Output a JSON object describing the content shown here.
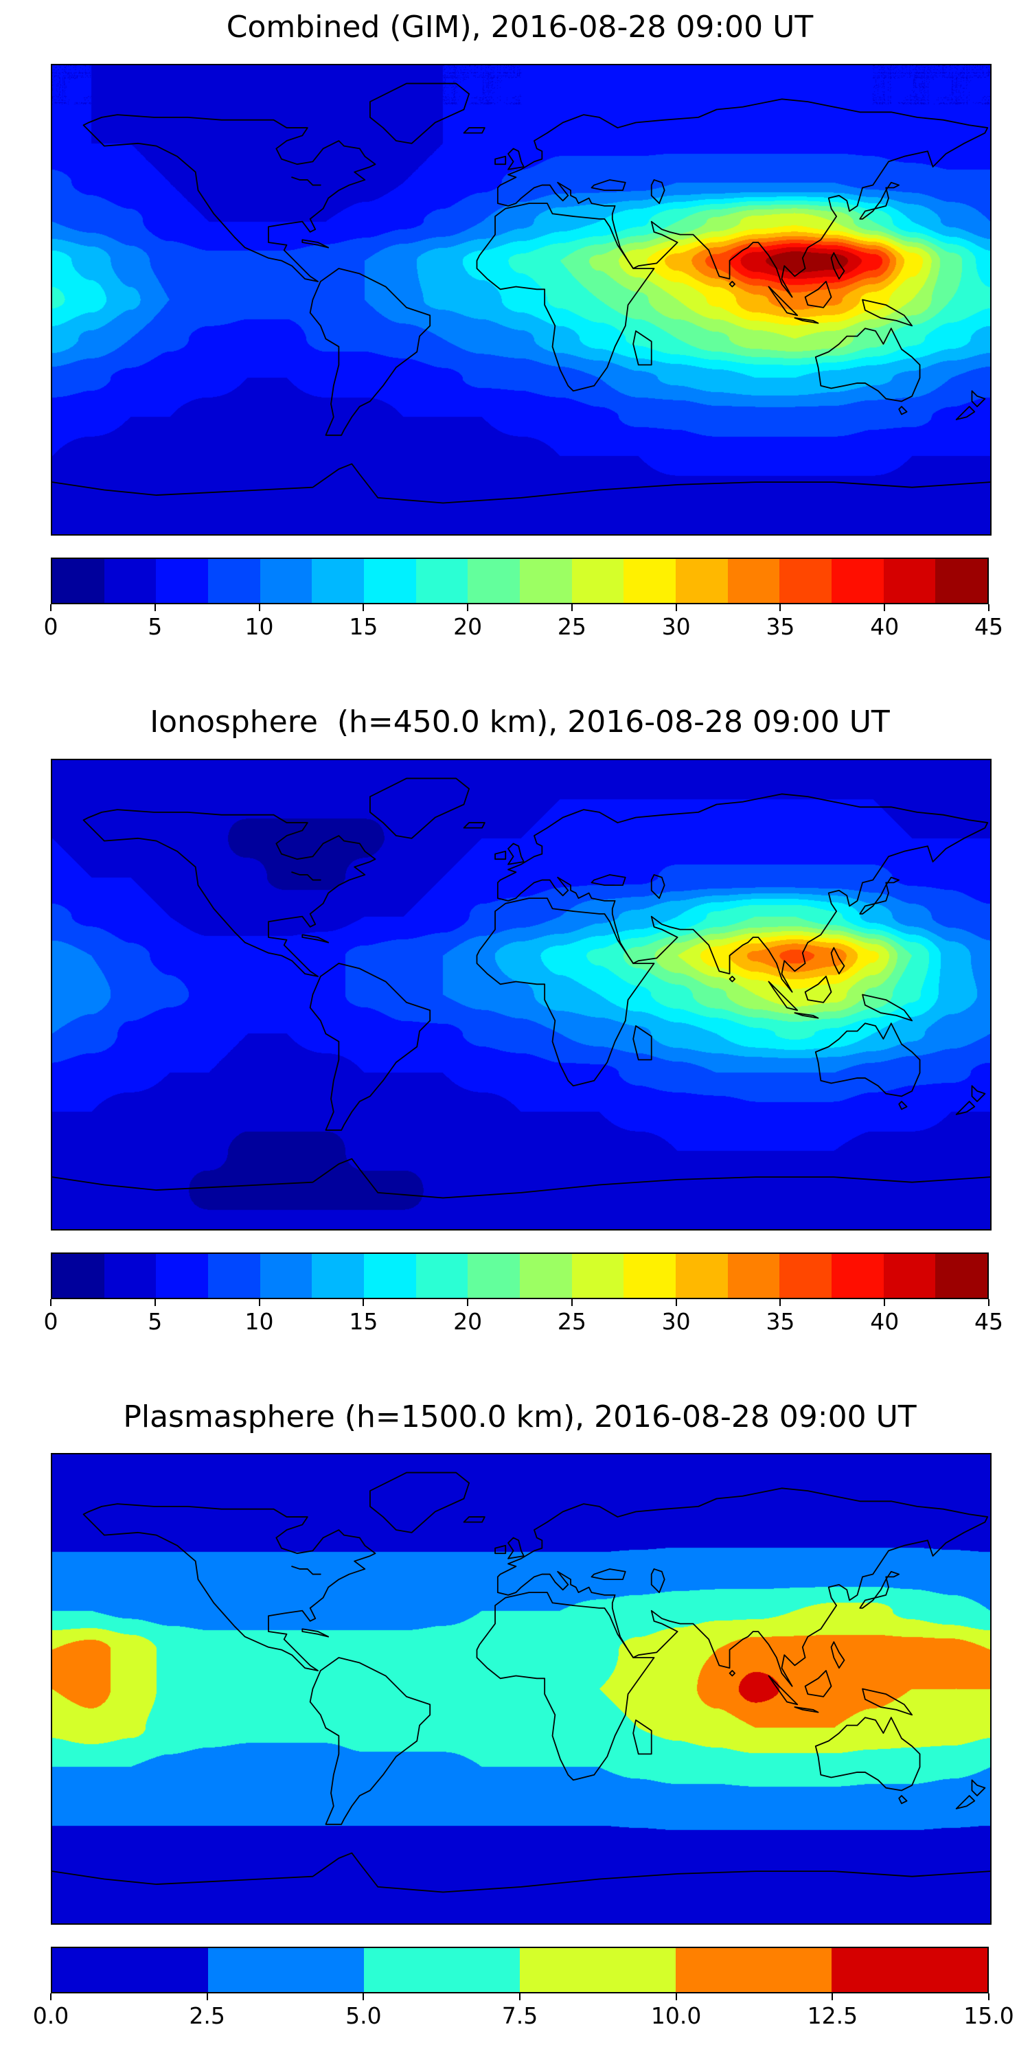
{
  "figure": {
    "background": "#ffffff",
    "coastline_color": "#000000",
    "colormap_name": "jet"
  },
  "chart_data": [
    {
      "type": "heatmap",
      "title": "Combined (GIM), 2016-08-28 09:00 UT",
      "projection": "equirectangular",
      "lon_range": [
        -180,
        180
      ],
      "lat_range": [
        -90,
        90
      ],
      "value_range": [
        0,
        45
      ],
      "contour_step": 2.5,
      "colormap": "jet",
      "colorbar_ticks": [
        0,
        5,
        10,
        15,
        20,
        25,
        30,
        35,
        40,
        45
      ],
      "tick_labels": [
        "0",
        "5",
        "10",
        "15",
        "20",
        "25",
        "30",
        "35",
        "40",
        "45"
      ],
      "grid_lons": [
        -180,
        -165,
        -150,
        -135,
        -120,
        -105,
        -90,
        -75,
        -60,
        -45,
        -30,
        -15,
        0,
        15,
        30,
        45,
        60,
        75,
        90,
        105,
        120,
        135,
        150,
        165,
        180
      ],
      "grid_lats": [
        90,
        75,
        60,
        45,
        30,
        15,
        0,
        -15,
        -30,
        -45,
        -60,
        -75,
        -90
      ],
      "values": [
        [
          5,
          5,
          5,
          5,
          5,
          5,
          5,
          5,
          5,
          5,
          5,
          5,
          5,
          5,
          5,
          5,
          5,
          5,
          5,
          5,
          5,
          5,
          5,
          5,
          5
        ],
        [
          5,
          5,
          4,
          4,
          4,
          4,
          4,
          4,
          4,
          4,
          5,
          5,
          5,
          6,
          6,
          6,
          6,
          6,
          6,
          6,
          6,
          5,
          5,
          5,
          5
        ],
        [
          6,
          5,
          5,
          4,
          4,
          3,
          3,
          3,
          3,
          4,
          5,
          6,
          6,
          7,
          7,
          7,
          7,
          7,
          7,
          7,
          7,
          7,
          6,
          6,
          6
        ],
        [
          8,
          7,
          6,
          5,
          4,
          4,
          3,
          3,
          4,
          5,
          6,
          7,
          8,
          9,
          9,
          9,
          10,
          10,
          10,
          10,
          10,
          9,
          9,
          8,
          8
        ],
        [
          10,
          9,
          8,
          6,
          5,
          5,
          5,
          5,
          6,
          7,
          8,
          10,
          12,
          14,
          15,
          17,
          20,
          23,
          26,
          27,
          25,
          20,
          15,
          12,
          10
        ],
        [
          16,
          14,
          11,
          9,
          8,
          8,
          8,
          9,
          10,
          12,
          14,
          16,
          18,
          20,
          23,
          27,
          31,
          36,
          42,
          45,
          44,
          39,
          29,
          21,
          16
        ],
        [
          18,
          16,
          13,
          10,
          9,
          8,
          8,
          9,
          10,
          12,
          13,
          14,
          16,
          18,
          20,
          22,
          25,
          28,
          32,
          34,
          33,
          29,
          25,
          20,
          18
        ],
        [
          14,
          12,
          10,
          8,
          7,
          7,
          7,
          8,
          8,
          9,
          10,
          11,
          12,
          14,
          16,
          18,
          20,
          22,
          24,
          25,
          24,
          21,
          18,
          16,
          14
        ],
        [
          9,
          8,
          7,
          6,
          6,
          5,
          5,
          6,
          6,
          6,
          7,
          8,
          8,
          9,
          10,
          12,
          13,
          14,
          15,
          15,
          14,
          13,
          12,
          10,
          9
        ],
        [
          6,
          6,
          5,
          5,
          4,
          4,
          4,
          4,
          4,
          5,
          5,
          5,
          6,
          6,
          7,
          8,
          8,
          9,
          9,
          9,
          9,
          8,
          8,
          7,
          6
        ],
        [
          5,
          4,
          4,
          4,
          3,
          3,
          3,
          3,
          3,
          3,
          4,
          4,
          4,
          5,
          5,
          5,
          6,
          6,
          6,
          6,
          6,
          6,
          5,
          5,
          5
        ],
        [
          4,
          3,
          3,
          3,
          3,
          3,
          3,
          3,
          3,
          3,
          3,
          3,
          3,
          4,
          4,
          4,
          4,
          4,
          4,
          4,
          4,
          4,
          4,
          4,
          4
        ],
        [
          3,
          3,
          3,
          3,
          3,
          3,
          3,
          3,
          3,
          3,
          3,
          3,
          3,
          3,
          3,
          3,
          3,
          3,
          3,
          3,
          3,
          3,
          3,
          3,
          3
        ]
      ]
    },
    {
      "type": "heatmap",
      "title": "Ionosphere  (h=450.0 km), 2016-08-28 09:00 UT",
      "projection": "equirectangular",
      "lon_range": [
        -180,
        180
      ],
      "lat_range": [
        -90,
        90
      ],
      "value_range": [
        0,
        45
      ],
      "contour_step": 2.5,
      "colormap": "jet",
      "colorbar_ticks": [
        0,
        5,
        10,
        15,
        20,
        25,
        30,
        35,
        40,
        45
      ],
      "tick_labels": [
        "0",
        "5",
        "10",
        "15",
        "20",
        "25",
        "30",
        "35",
        "40",
        "45"
      ],
      "grid_lons": [
        -180,
        -165,
        -150,
        -135,
        -120,
        -105,
        -90,
        -75,
        -60,
        -45,
        -30,
        -15,
        0,
        15,
        30,
        45,
        60,
        75,
        90,
        105,
        120,
        135,
        150,
        165,
        180
      ],
      "grid_lats": [
        90,
        75,
        60,
        45,
        30,
        15,
        0,
        -15,
        -30,
        -45,
        -60,
        -75,
        -90
      ],
      "values": [
        [
          4,
          4,
          4,
          4,
          4,
          4,
          4,
          4,
          4,
          4,
          4,
          4,
          4,
          4,
          4,
          4,
          4,
          4,
          4,
          4,
          4,
          4,
          4,
          4,
          4
        ],
        [
          4,
          4,
          4,
          3,
          3,
          3,
          3,
          3,
          3,
          3,
          4,
          4,
          4,
          5,
          5,
          5,
          5,
          5,
          5,
          5,
          5,
          5,
          4,
          4,
          4
        ],
        [
          5,
          4,
          4,
          3,
          3,
          2,
          2,
          2,
          2,
          3,
          4,
          5,
          5,
          6,
          6,
          6,
          6,
          6,
          6,
          6,
          6,
          6,
          5,
          5,
          5
        ],
        [
          6,
          5,
          5,
          4,
          3,
          3,
          2,
          2,
          3,
          4,
          5,
          6,
          6,
          7,
          7,
          7,
          8,
          8,
          8,
          8,
          8,
          8,
          7,
          7,
          6
        ],
        [
          8,
          7,
          6,
          5,
          4,
          4,
          4,
          4,
          5,
          5,
          6,
          8,
          9,
          10,
          12,
          13,
          15,
          18,
          20,
          20,
          18,
          14,
          11,
          9,
          8
        ],
        [
          11,
          10,
          8,
          7,
          6,
          6,
          6,
          7,
          8,
          9,
          10,
          12,
          14,
          16,
          18,
          21,
          25,
          29,
          33,
          36,
          34,
          28,
          20,
          14,
          11
        ],
        [
          12,
          11,
          9,
          8,
          7,
          6,
          6,
          7,
          8,
          9,
          10,
          11,
          12,
          14,
          15,
          17,
          19,
          22,
          25,
          27,
          26,
          22,
          18,
          14,
          12
        ],
        [
          10,
          9,
          7,
          6,
          6,
          5,
          5,
          6,
          6,
          7,
          7,
          8,
          9,
          10,
          11,
          12,
          14,
          15,
          17,
          18,
          17,
          15,
          13,
          11,
          10
        ],
        [
          7,
          6,
          6,
          5,
          5,
          4,
          4,
          4,
          5,
          5,
          5,
          6,
          6,
          7,
          7,
          8,
          9,
          10,
          10,
          10,
          10,
          9,
          8,
          8,
          7
        ],
        [
          5,
          5,
          4,
          4,
          4,
          3,
          3,
          3,
          3,
          4,
          4,
          4,
          5,
          5,
          5,
          6,
          6,
          6,
          7,
          7,
          7,
          6,
          6,
          5,
          5
        ],
        [
          4,
          4,
          3,
          3,
          3,
          2,
          2,
          2,
          3,
          3,
          3,
          3,
          4,
          4,
          4,
          4,
          5,
          5,
          5,
          5,
          5,
          4,
          4,
          4,
          4
        ],
        [
          3,
          3,
          3,
          3,
          2,
          2,
          2,
          2,
          2,
          2,
          3,
          3,
          3,
          3,
          3,
          3,
          3,
          3,
          3,
          3,
          3,
          3,
          3,
          3,
          3
        ],
        [
          3,
          3,
          3,
          3,
          3,
          3,
          3,
          3,
          3,
          3,
          3,
          3,
          3,
          3,
          3,
          3,
          3,
          3,
          3,
          3,
          3,
          3,
          3,
          3,
          3
        ]
      ]
    },
    {
      "type": "heatmap",
      "title": "Plasmasphere (h=1500.0 km), 2016-08-28 09:00 UT",
      "projection": "equirectangular",
      "lon_range": [
        -180,
        180
      ],
      "lat_range": [
        -90,
        90
      ],
      "value_range": [
        0,
        15
      ],
      "contour_step": 2.5,
      "colormap": "jet",
      "colorbar_ticks": [
        0,
        2.5,
        5,
        7.5,
        10,
        12.5,
        15
      ],
      "tick_labels": [
        "0.0",
        "2.5",
        "5.0",
        "7.5",
        "10.0",
        "12.5",
        "15.0"
      ],
      "grid_lons": [
        -180,
        -165,
        -150,
        -135,
        -120,
        -105,
        -90,
        -75,
        -60,
        -45,
        -30,
        -15,
        0,
        15,
        30,
        45,
        60,
        75,
        90,
        105,
        120,
        135,
        150,
        165,
        180
      ],
      "grid_lats": [
        90,
        75,
        60,
        45,
        30,
        15,
        0,
        -15,
        -30,
        -45,
        -60,
        -75,
        -90
      ],
      "values": [
        [
          1.5,
          1.5,
          1.5,
          1.5,
          1.5,
          1.5,
          1.5,
          1.5,
          1.5,
          1.5,
          1.5,
          1.5,
          1.5,
          1.5,
          1.5,
          1.5,
          1.5,
          1.5,
          1.5,
          1.5,
          1.5,
          1.5,
          1.5,
          1.5,
          1.5
        ],
        [
          1.5,
          1.5,
          1.5,
          1.5,
          1.5,
          1.5,
          1.5,
          1.5,
          1.5,
          1.5,
          1.5,
          1.5,
          1.5,
          1.5,
          1.5,
          1.5,
          1.5,
          1.5,
          1.5,
          1.5,
          1.5,
          1.5,
          1.5,
          1.5,
          1.5
        ],
        [
          2,
          2,
          2,
          2,
          2,
          2,
          2,
          2,
          2,
          2,
          2,
          2,
          2,
          2,
          2,
          2,
          2,
          2,
          2,
          2,
          2,
          2,
          2,
          2,
          2
        ],
        [
          3,
          3,
          3,
          3,
          3,
          3,
          3,
          3,
          3,
          3,
          3,
          3,
          3,
          3,
          3,
          3.2,
          3.5,
          3.5,
          3.5,
          3.5,
          3.5,
          3.5,
          3.5,
          3.2,
          3
        ],
        [
          5,
          5,
          4.5,
          4,
          4,
          4,
          4,
          4,
          4,
          4,
          4.5,
          5,
          5,
          5,
          5.5,
          6,
          6.5,
          7,
          7,
          7.5,
          8,
          8,
          7,
          6,
          5
        ],
        [
          10,
          11,
          9,
          7,
          6,
          6,
          6,
          6,
          6,
          6,
          6,
          6,
          6.5,
          7,
          7,
          8,
          9,
          10,
          11,
          11,
          11,
          11,
          11,
          11,
          10
        ],
        [
          10,
          11,
          9,
          7,
          6.5,
          6,
          6,
          6,
          6.5,
          6.5,
          6.5,
          6.5,
          7,
          7,
          7.5,
          8,
          9,
          11,
          13.5,
          12,
          11,
          10.5,
          10,
          10,
          10
        ],
        [
          8,
          9,
          8,
          6.5,
          6,
          5.5,
          5.5,
          5.5,
          6,
          6,
          6,
          6,
          6.5,
          6.5,
          7,
          7.5,
          8,
          9,
          10,
          10,
          10,
          9.5,
          9,
          9,
          8
        ],
        [
          5,
          5,
          5,
          4.5,
          4,
          4,
          4,
          4,
          4.5,
          4.5,
          4.5,
          5,
          5,
          5,
          5,
          5.5,
          6,
          6,
          6.5,
          6.5,
          6.5,
          6,
          6,
          5.5,
          5
        ],
        [
          3,
          3,
          3,
          3,
          3,
          3,
          3,
          3,
          3,
          3,
          3,
          3,
          3,
          3,
          3,
          3.2,
          3.5,
          3.5,
          3.5,
          3.5,
          3.5,
          3.5,
          3.5,
          3.2,
          3
        ],
        [
          2,
          2,
          2,
          2,
          2,
          2,
          2,
          2,
          2,
          2,
          2,
          2,
          2,
          2,
          2,
          2,
          2,
          2,
          2,
          2,
          2,
          2,
          2,
          2,
          2
        ],
        [
          1.5,
          1.5,
          1.5,
          1.5,
          1.5,
          1.5,
          1.5,
          1.5,
          1.5,
          1.5,
          1.5,
          1.5,
          1.5,
          1.5,
          1.5,
          1.5,
          1.5,
          1.5,
          1.5,
          1.5,
          1.5,
          1.5,
          1.5,
          1.5,
          1.5
        ],
        [
          1.5,
          1.5,
          1.5,
          1.5,
          1.5,
          1.5,
          1.5,
          1.5,
          1.5,
          1.5,
          1.5,
          1.5,
          1.5,
          1.5,
          1.5,
          1.5,
          1.5,
          1.5,
          1.5,
          1.5,
          1.5,
          1.5,
          1.5,
          1.5,
          1.5
        ]
      ]
    }
  ]
}
